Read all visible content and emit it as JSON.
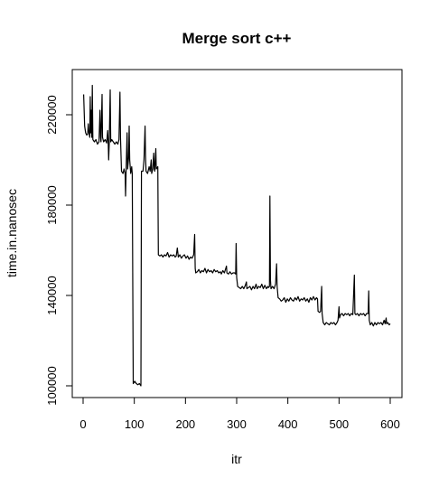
{
  "chart_data": {
    "type": "line",
    "title": "Merge sort c++",
    "xlabel": "itr",
    "ylabel": "time.in.nanosec",
    "xlim": [
      0,
      600
    ],
    "ylim": [
      100000,
      230000
    ],
    "grid": false,
    "legend": "none",
    "line_color": "#000000",
    "x_ticks": [
      {
        "value": 0,
        "label": "0"
      },
      {
        "value": 100,
        "label": "100"
      },
      {
        "value": 200,
        "label": "200"
      },
      {
        "value": 300,
        "label": "300"
      },
      {
        "value": 400,
        "label": "400"
      },
      {
        "value": 500,
        "label": "500"
      },
      {
        "value": 600,
        "label": "600"
      }
    ],
    "y_ticks": [
      {
        "value": 100000,
        "label": "100000"
      },
      {
        "value": 140000,
        "label": "140000"
      },
      {
        "value": 180000,
        "label": "180000"
      },
      {
        "value": 220000,
        "label": "220000"
      }
    ],
    "series": [
      {
        "values": [
          [
            1,
            229000
          ],
          [
            3,
            215000
          ],
          [
            5,
            212000
          ],
          [
            7,
            211000
          ],
          [
            9,
            211500
          ],
          [
            10,
            216000
          ],
          [
            11,
            213000
          ],
          [
            13,
            210000
          ],
          [
            14,
            228000
          ],
          [
            15,
            212000
          ],
          [
            16,
            222000
          ],
          [
            17,
            210000
          ],
          [
            18,
            233000
          ],
          [
            19,
            209000
          ],
          [
            22,
            208000
          ],
          [
            25,
            209000
          ],
          [
            28,
            207000
          ],
          [
            31,
            208000
          ],
          [
            33,
            222000
          ],
          [
            34,
            210000
          ],
          [
            35,
            208000
          ],
          [
            37,
            229000
          ],
          [
            38,
            210000
          ],
          [
            40,
            208000
          ],
          [
            43,
            209000
          ],
          [
            46,
            207500
          ],
          [
            48,
            213000
          ],
          [
            49,
            208000
          ],
          [
            50,
            200000
          ],
          [
            51,
            207000
          ],
          [
            53,
            231000
          ],
          [
            54,
            208000
          ],
          [
            56,
            209000
          ],
          [
            59,
            208000
          ],
          [
            62,
            207000
          ],
          [
            65,
            208000
          ],
          [
            68,
            207000
          ],
          [
            70,
            209000
          ],
          [
            72,
            230000
          ],
          [
            73,
            210000
          ],
          [
            75,
            195000
          ],
          [
            78,
            194000
          ],
          [
            80,
            196000
          ],
          [
            82,
            194000
          ],
          [
            83,
            184000
          ],
          [
            84,
            195000
          ],
          [
            86,
            212000
          ],
          [
            87,
            196000
          ],
          [
            89,
            201000
          ],
          [
            90,
            215000
          ],
          [
            91,
            200000
          ],
          [
            93,
            194000
          ],
          [
            95,
            197000
          ],
          [
            96,
            194000
          ],
          [
            98,
            101000
          ],
          [
            101,
            102000
          ],
          [
            104,
            101000
          ],
          [
            107,
            100500
          ],
          [
            110,
            101000
          ],
          [
            113,
            100000
          ],
          [
            114,
            195000
          ],
          [
            117,
            195000
          ],
          [
            119,
            200000
          ],
          [
            121,
            215000
          ],
          [
            122,
            202000
          ],
          [
            123,
            195000
          ],
          [
            126,
            194000
          ],
          [
            129,
            197000
          ],
          [
            131,
            195000
          ],
          [
            133,
            200000
          ],
          [
            134,
            194000
          ],
          [
            136,
            196000
          ],
          [
            138,
            203000
          ],
          [
            139,
            196000
          ],
          [
            140,
            195000
          ],
          [
            142,
            205000
          ],
          [
            143,
            196000
          ],
          [
            146,
            197000
          ],
          [
            147,
            158000
          ],
          [
            150,
            157500
          ],
          [
            153,
            158000
          ],
          [
            156,
            157000
          ],
          [
            159,
            158000
          ],
          [
            162,
            157500
          ],
          [
            165,
            159000
          ],
          [
            168,
            157000
          ],
          [
            171,
            158000
          ],
          [
            174,
            157500
          ],
          [
            177,
            158000
          ],
          [
            180,
            157000
          ],
          [
            182,
            157500
          ],
          [
            184,
            161000
          ],
          [
            186,
            157000
          ],
          [
            189,
            158000
          ],
          [
            192,
            156500
          ],
          [
            195,
            157500
          ],
          [
            198,
            158000
          ],
          [
            201,
            156500
          ],
          [
            204,
            157500
          ],
          [
            207,
            156000
          ],
          [
            210,
            157000
          ],
          [
            213,
            156500
          ],
          [
            216,
            158000
          ],
          [
            218,
            167000
          ],
          [
            219,
            152000
          ],
          [
            220,
            150000
          ],
          [
            223,
            150500
          ],
          [
            226,
            151500
          ],
          [
            229,
            150000
          ],
          [
            232,
            151000
          ],
          [
            235,
            150500
          ],
          [
            238,
            152000
          ],
          [
            241,
            150000
          ],
          [
            244,
            151500
          ],
          [
            247,
            150500
          ],
          [
            250,
            151000
          ],
          [
            253,
            150000
          ],
          [
            256,
            151500
          ],
          [
            259,
            150500
          ],
          [
            262,
            151000
          ],
          [
            265,
            150000
          ],
          [
            268,
            150500
          ],
          [
            270,
            149500
          ],
          [
            273,
            151000
          ],
          [
            276,
            150000
          ],
          [
            280,
            153000
          ],
          [
            281,
            150000
          ],
          [
            284,
            149500
          ],
          [
            287,
            150500
          ],
          [
            290,
            149500
          ],
          [
            293,
            150000
          ],
          [
            296,
            150000
          ],
          [
            298,
            149500
          ],
          [
            299,
            163000
          ],
          [
            300,
            148000
          ],
          [
            302,
            144000
          ],
          [
            305,
            143500
          ],
          [
            308,
            143000
          ],
          [
            311,
            144000
          ],
          [
            314,
            143000
          ],
          [
            317,
            144500
          ],
          [
            319,
            146000
          ],
          [
            320,
            143000
          ],
          [
            323,
            143500
          ],
          [
            326,
            144000
          ],
          [
            329,
            142500
          ],
          [
            332,
            144000
          ],
          [
            335,
            143000
          ],
          [
            338,
            145000
          ],
          [
            340,
            143000
          ],
          [
            343,
            144000
          ],
          [
            346,
            143500
          ],
          [
            349,
            145000
          ],
          [
            352,
            143000
          ],
          [
            355,
            144500
          ],
          [
            358,
            143000
          ],
          [
            361,
            144000
          ],
          [
            362,
            143500
          ],
          [
            364,
            144000
          ],
          [
            365,
            184000
          ],
          [
            366,
            147000
          ],
          [
            367,
            143000
          ],
          [
            370,
            144000
          ],
          [
            373,
            143000
          ],
          [
            376,
            145000
          ],
          [
            378,
            154000
          ],
          [
            379,
            144000
          ],
          [
            381,
            139000
          ],
          [
            384,
            138500
          ],
          [
            387,
            137500
          ],
          [
            390,
            138000
          ],
          [
            393,
            139000
          ],
          [
            396,
            137000
          ],
          [
            399,
            138500
          ],
          [
            402,
            137500
          ],
          [
            405,
            139000
          ],
          [
            408,
            138000
          ],
          [
            411,
            137500
          ],
          [
            414,
            139000
          ],
          [
            417,
            138000
          ],
          [
            420,
            139500
          ],
          [
            423,
            137500
          ],
          [
            426,
            138500
          ],
          [
            429,
            138000
          ],
          [
            432,
            139000
          ],
          [
            435,
            137500
          ],
          [
            438,
            138500
          ],
          [
            441,
            137000
          ],
          [
            444,
            139000
          ],
          [
            447,
            138000
          ],
          [
            450,
            139500
          ],
          [
            453,
            138000
          ],
          [
            456,
            139000
          ],
          [
            458,
            138500
          ],
          [
            459,
            133000
          ],
          [
            462,
            132500
          ],
          [
            464,
            133000
          ],
          [
            466,
            144000
          ],
          [
            467,
            132000
          ],
          [
            469,
            128000
          ],
          [
            472,
            127000
          ],
          [
            475,
            128000
          ],
          [
            478,
            127500
          ],
          [
            481,
            127000
          ],
          [
            484,
            128000
          ],
          [
            487,
            127500
          ],
          [
            490,
            128000
          ],
          [
            493,
            127000
          ],
          [
            496,
            128000
          ],
          [
            498,
            129000
          ],
          [
            500,
            135000
          ],
          [
            501,
            130000
          ],
          [
            503,
            131500
          ],
          [
            506,
            132000
          ],
          [
            509,
            131000
          ],
          [
            512,
            132000
          ],
          [
            515,
            131500
          ],
          [
            518,
            132000
          ],
          [
            521,
            131000
          ],
          [
            524,
            132000
          ],
          [
            527,
            131500
          ],
          [
            530,
            149000
          ],
          [
            531,
            132000
          ],
          [
            533,
            131500
          ],
          [
            536,
            132000
          ],
          [
            539,
            131000
          ],
          [
            542,
            132000
          ],
          [
            545,
            131500
          ],
          [
            548,
            132000
          ],
          [
            551,
            131000
          ],
          [
            554,
            132000
          ],
          [
            557,
            132000
          ],
          [
            558,
            142000
          ],
          [
            559,
            129000
          ],
          [
            561,
            127000
          ],
          [
            564,
            128000
          ],
          [
            567,
            126500
          ],
          [
            570,
            128000
          ],
          [
            573,
            127000
          ],
          [
            576,
            128000
          ],
          [
            579,
            127500
          ],
          [
            582,
            128000
          ],
          [
            585,
            127000
          ],
          [
            588,
            129000
          ],
          [
            590,
            127500
          ],
          [
            592,
            130000
          ],
          [
            593,
            127500
          ],
          [
            595,
            128000
          ],
          [
            598,
            127000
          ],
          [
            600,
            127500
          ]
        ]
      }
    ]
  }
}
